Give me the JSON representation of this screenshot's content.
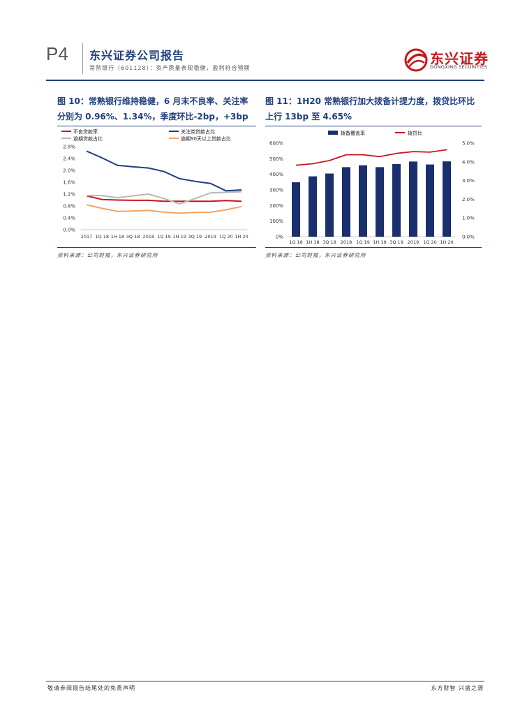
{
  "header": {
    "page_number": "P4",
    "report_title": "东兴证券公司报告",
    "report_subtitle": "常熟银行（601128）：资产质量表现稳健，盈利符合预期",
    "logo_cn": "东兴证券",
    "logo_en": "DONGXING SECURITIES"
  },
  "figures": [
    {
      "title": "图 10：常熟银行维持稳健，6 月末不良率、关注率分别为 0.96%、1.34%，季度环比-2bp，+3bp",
      "source": "资料来源：公司财报，东兴证券研究所"
    },
    {
      "title": "图 11：1H20 常熟银行加大拨备计提力度，拨贷比环比上行 13bp 至 4.65%",
      "source": "资料来源：公司财报，东兴证券研究所"
    }
  ],
  "footer": {
    "left": "敬请参阅报告结尾处的免责声明",
    "right": "东方财智  兴盛之源"
  },
  "chart_data": [
    {
      "type": "line",
      "categories": [
        "2017",
        "1Q 18",
        "1H 18",
        "3Q 18",
        "2018",
        "1Q 19",
        "1H 19",
        "3Q 19",
        "2019",
        "1Q 20",
        "1H 20"
      ],
      "ylim": [
        0,
        2.8
      ],
      "yticks": [
        "0.0%",
        "0.4%",
        "0.8%",
        "1.2%",
        "1.6%",
        "2.0%",
        "2.4%",
        "2.8%"
      ],
      "legend_position": "top",
      "series": [
        {
          "name": "不良贷款率",
          "color": "#c8161d",
          "values": [
            1.14,
            1.02,
            1.0,
            0.99,
            0.99,
            0.96,
            0.96,
            0.96,
            0.96,
            0.98,
            0.96
          ]
        },
        {
          "name": "关注类贷款占比",
          "color": "#1f3f7f",
          "values": [
            2.65,
            2.42,
            2.17,
            2.12,
            2.08,
            1.96,
            1.72,
            1.63,
            1.56,
            1.31,
            1.34
          ]
        },
        {
          "name": "逾期贷款占比",
          "color": "#b8b8b8",
          "values": [
            1.15,
            1.15,
            1.08,
            1.14,
            1.2,
            1.05,
            0.87,
            1.05,
            1.24,
            1.26,
            1.28
          ]
        },
        {
          "name": "逾期90天以上贷款占比",
          "color": "#f4a460",
          "values": [
            0.84,
            0.72,
            0.62,
            0.63,
            0.65,
            0.59,
            0.56,
            0.58,
            0.59,
            0.67,
            0.78
          ]
        }
      ]
    },
    {
      "type": "bar",
      "categories": [
        "1Q 18",
        "1H 18",
        "3Q 18",
        "2018",
        "1Q 19",
        "1H 19",
        "3Q 19",
        "2019",
        "1Q 20",
        "1H 20"
      ],
      "ylim": [
        0,
        600
      ],
      "yticks": [
        "0%",
        "100%",
        "200%",
        "300%",
        "400%",
        "500%",
        "600%"
      ],
      "y2lim": [
        0,
        5
      ],
      "y2ticks": [
        "0.0%",
        "1.0%",
        "2.0%",
        "3.0%",
        "4.0%",
        "5.0%"
      ],
      "legend_position": "top",
      "series": [
        {
          "name": "拨备覆盖率",
          "type": "bar",
          "color": "#1a2f6e",
          "values": [
            349,
            387,
            405,
            446,
            458,
            446,
            466,
            482,
            463,
            483
          ]
        },
        {
          "name": "拨贷比",
          "type": "line",
          "axis": "right",
          "color": "#c8161d",
          "values": [
            3.82,
            3.9,
            4.07,
            4.38,
            4.38,
            4.28,
            4.45,
            4.55,
            4.52,
            4.65
          ]
        }
      ]
    }
  ]
}
